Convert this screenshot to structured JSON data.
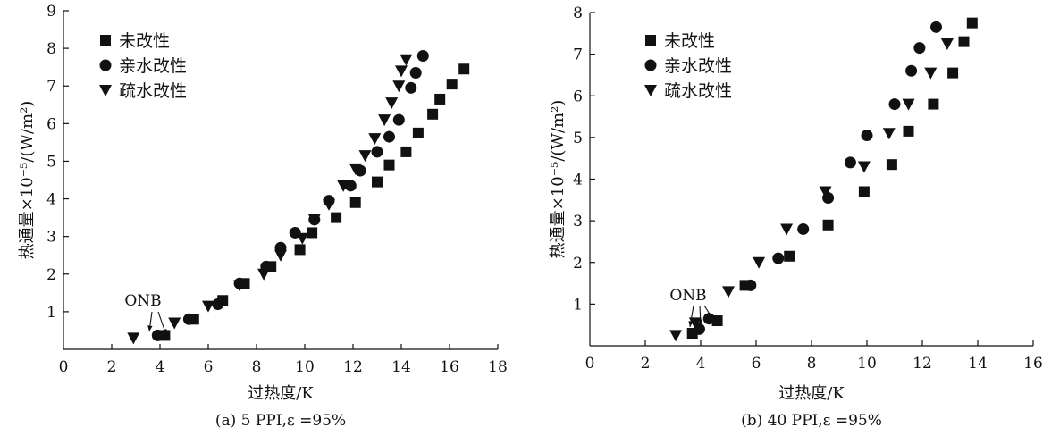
{
  "chart_data": [
    {
      "type": "scatter",
      "caption": "(a) 5 PPI,ε =95%",
      "xlabel": "过热度/K",
      "ylabel": "热通量×10⁻⁵/(W/m²)",
      "xlim": [
        0,
        18
      ],
      "ylim": [
        0,
        9
      ],
      "xticks": [
        "0",
        "2",
        "4",
        "6",
        "8",
        "10",
        "12",
        "14",
        "16",
        "18"
      ],
      "yticks": [
        "1",
        "2",
        "3",
        "4",
        "5",
        "6",
        "7",
        "8",
        "9"
      ],
      "annotation": "ONB",
      "legend_position": "top-left",
      "series": [
        {
          "name": "未改性",
          "marker": "square",
          "x": [
            4.2,
            5.4,
            6.6,
            7.5,
            8.6,
            9.8,
            10.3,
            11.3,
            12.1,
            13.0,
            13.5,
            14.2,
            14.7,
            15.3,
            15.6,
            16.1,
            16.6
          ],
          "y": [
            0.37,
            0.8,
            1.3,
            1.75,
            2.2,
            2.65,
            3.1,
            3.5,
            3.9,
            4.45,
            4.9,
            5.25,
            5.75,
            6.25,
            6.65,
            7.05,
            7.45
          ]
        },
        {
          "name": "亲水改性",
          "marker": "circle",
          "x": [
            3.9,
            5.2,
            6.4,
            7.3,
            8.4,
            9.0,
            9.6,
            10.4,
            11.0,
            11.9,
            12.3,
            13.0,
            13.5,
            13.9,
            14.4,
            14.6,
            14.9
          ],
          "y": [
            0.37,
            0.8,
            1.2,
            1.75,
            2.2,
            2.7,
            3.1,
            3.45,
            3.95,
            4.35,
            4.75,
            5.25,
            5.65,
            6.1,
            6.95,
            7.35,
            7.8
          ]
        },
        {
          "name": "疏水改性",
          "marker": "triangle",
          "x": [
            2.9,
            4.6,
            6.0,
            7.3,
            8.3,
            9.0,
            9.9,
            10.4,
            11.0,
            11.6,
            12.1,
            12.5,
            12.9,
            13.3,
            13.6,
            13.9,
            14.0,
            14.2
          ],
          "y": [
            0.3,
            0.7,
            1.15,
            1.7,
            2.0,
            2.5,
            2.95,
            3.45,
            3.85,
            4.35,
            4.8,
            5.15,
            5.6,
            6.1,
            6.55,
            7.0,
            7.4,
            7.7
          ]
        }
      ]
    },
    {
      "type": "scatter",
      "caption": "(b) 40 PPI,ε =95%",
      "xlabel": "过热度/K",
      "ylabel": "热通量×10⁻⁵/(W/m²)",
      "xlim": [
        0,
        16
      ],
      "ylim": [
        0,
        8
      ],
      "xticks": [
        "0",
        "2",
        "4",
        "6",
        "8",
        "10",
        "12",
        "14",
        "16"
      ],
      "yticks": [
        "1",
        "2",
        "3",
        "4",
        "5",
        "6",
        "7",
        "8"
      ],
      "annotation": "ONB",
      "legend_position": "top-left",
      "series": [
        {
          "name": "未改性",
          "marker": "square",
          "x": [
            3.7,
            4.6,
            5.6,
            7.2,
            8.6,
            9.9,
            10.9,
            11.5,
            12.4,
            13.1,
            13.5,
            13.8
          ],
          "y": [
            0.3,
            0.6,
            1.45,
            2.15,
            2.9,
            3.7,
            4.35,
            5.15,
            5.8,
            6.55,
            7.3,
            7.75
          ]
        },
        {
          "name": "亲水改性",
          "marker": "circle",
          "x": [
            3.95,
            4.3,
            5.8,
            6.8,
            7.7,
            8.6,
            9.4,
            10.0,
            11.0,
            11.6,
            11.9,
            12.5
          ],
          "y": [
            0.4,
            0.65,
            1.45,
            2.1,
            2.8,
            3.55,
            4.4,
            5.05,
            5.8,
            6.6,
            7.15,
            7.65
          ]
        },
        {
          "name": "疏水改性",
          "marker": "triangle",
          "x": [
            3.1,
            3.8,
            5.0,
            6.1,
            7.1,
            8.5,
            9.9,
            10.8,
            11.5,
            12.3,
            12.9
          ],
          "y": [
            0.25,
            0.55,
            1.3,
            2.0,
            2.8,
            3.7,
            4.3,
            5.1,
            5.8,
            6.55,
            7.25
          ]
        }
      ]
    }
  ]
}
